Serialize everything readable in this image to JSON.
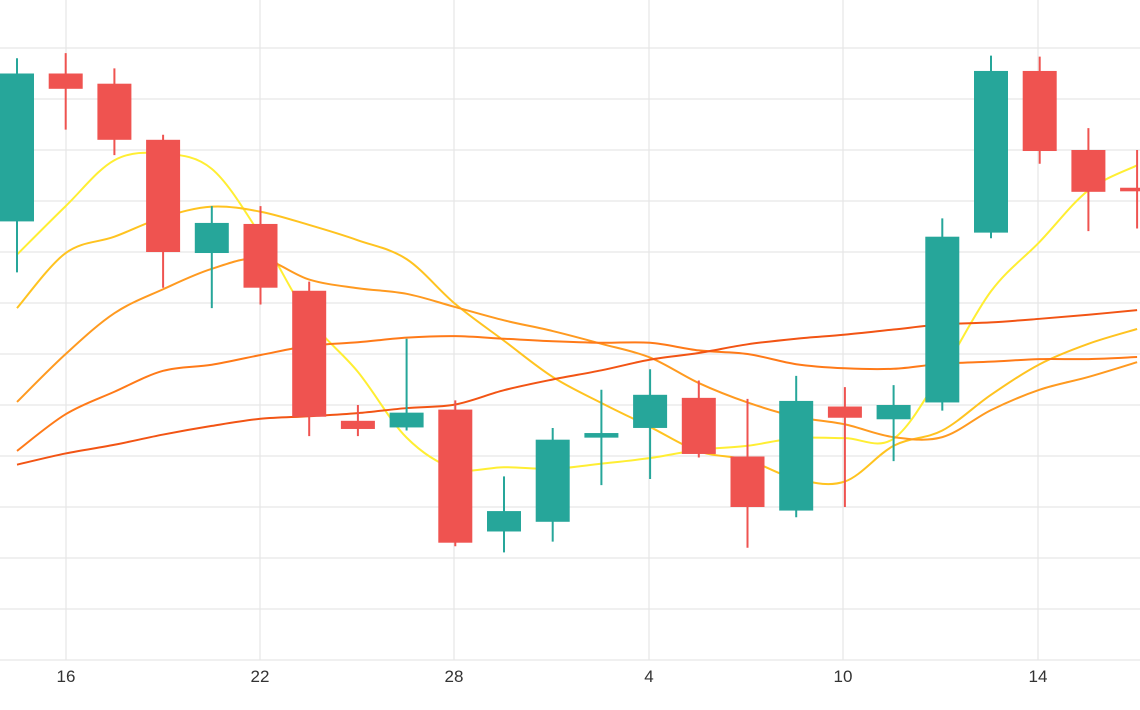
{
  "chart_data": {
    "type": "candlestick",
    "x_ticks": [
      "16",
      "22",
      "28",
      "4",
      "10",
      "14"
    ],
    "colors": {
      "up": "#26a69a",
      "down": "#ef5350",
      "grid": "#e6e6e6",
      "ma": [
        "#ffee33",
        "#ffc320",
        "#ff9a20",
        "#ff7a18",
        "#f25414"
      ]
    },
    "grid": true,
    "ylim": [
      0,
      13
    ],
    "candles": [
      {
        "open": 8.6,
        "close": 11.5,
        "high": 11.8,
        "low": 7.6
      },
      {
        "open": 11.5,
        "close": 11.2,
        "high": 11.9,
        "low": 10.4
      },
      {
        "open": 11.3,
        "close": 10.2,
        "high": 11.6,
        "low": 9.9
      },
      {
        "open": 10.2,
        "close": 8.0,
        "high": 10.3,
        "low": 7.3
      },
      {
        "open": 7.98,
        "close": 8.57,
        "high": 8.9,
        "low": 6.9
      },
      {
        "open": 8.55,
        "close": 7.3,
        "high": 8.9,
        "low": 6.97
      },
      {
        "open": 7.24,
        "close": 4.77,
        "high": 7.42,
        "low": 4.39
      },
      {
        "open": 4.69,
        "close": 4.53,
        "high": 5.0,
        "low": 4.39
      },
      {
        "open": 4.56,
        "close": 4.85,
        "high": 6.3,
        "low": 4.5
      },
      {
        "open": 4.91,
        "close": 2.3,
        "high": 5.09,
        "low": 2.23
      },
      {
        "open": 2.52,
        "close": 2.92,
        "high": 3.6,
        "low": 2.11
      },
      {
        "open": 2.71,
        "close": 4.32,
        "high": 4.55,
        "low": 2.32
      },
      {
        "open": 4.36,
        "close": 4.45,
        "high": 5.3,
        "low": 3.43
      },
      {
        "open": 4.55,
        "close": 5.2,
        "high": 5.7,
        "low": 3.55
      },
      {
        "open": 5.14,
        "close": 4.04,
        "high": 5.48,
        "low": 3.97
      },
      {
        "open": 3.99,
        "close": 3.0,
        "high": 5.12,
        "low": 2.2
      },
      {
        "open": 2.93,
        "close": 5.08,
        "high": 5.57,
        "low": 2.8
      },
      {
        "open": 4.97,
        "close": 4.75,
        "high": 5.35,
        "low": 3.0
      },
      {
        "open": 4.72,
        "close": 5.0,
        "high": 5.39,
        "low": 3.9
      },
      {
        "open": 5.05,
        "close": 8.3,
        "high": 8.66,
        "low": 4.89
      },
      {
        "open": 8.38,
        "close": 11.55,
        "high": 11.85,
        "low": 8.27
      },
      {
        "open": 11.55,
        "close": 9.98,
        "high": 11.83,
        "low": 9.73
      },
      {
        "open": 10.0,
        "close": 9.18,
        "high": 10.43,
        "low": 8.41
      },
      {
        "open": 9.26,
        "close": 9.19,
        "high": 10.0,
        "low": 8.46
      }
    ],
    "ma_series": [
      {
        "values": [
          7.95,
          8.9,
          9.8,
          9.93,
          9.63,
          8.33,
          6.7,
          5.65,
          4.36,
          3.75,
          3.78,
          3.75,
          3.85,
          3.96,
          4.12,
          4.2,
          4.35,
          4.35,
          4.34,
          5.65,
          7.23,
          8.2,
          9.21,
          9.7
        ]
      },
      {
        "values": [
          6.9,
          7.98,
          8.3,
          8.68,
          8.89,
          8.79,
          8.53,
          8.23,
          7.86,
          6.98,
          6.26,
          5.55,
          5.04,
          4.57,
          4.09,
          3.92,
          3.55,
          3.5,
          4.2,
          4.5,
          5.2,
          5.8,
          6.2,
          6.49
        ]
      },
      {
        "values": [
          5.06,
          6.0,
          6.8,
          7.27,
          7.67,
          7.87,
          7.46,
          7.29,
          7.18,
          6.92,
          6.66,
          6.45,
          6.2,
          5.93,
          5.43,
          5.05,
          4.77,
          4.62,
          4.37,
          4.37,
          4.9,
          5.3,
          5.55,
          5.84
        ]
      },
      {
        "values": [
          4.1,
          4.82,
          5.26,
          5.67,
          5.79,
          5.98,
          6.16,
          6.23,
          6.32,
          6.35,
          6.3,
          6.25,
          6.22,
          6.22,
          6.07,
          6.0,
          5.8,
          5.72,
          5.71,
          5.81,
          5.85,
          5.9,
          5.9,
          5.94
        ]
      },
      {
        "values": [
          3.83,
          4.05,
          4.22,
          4.42,
          4.59,
          4.73,
          4.78,
          4.84,
          4.94,
          5.01,
          5.29,
          5.5,
          5.68,
          5.89,
          6.02,
          6.19,
          6.3,
          6.38,
          6.48,
          6.58,
          6.62,
          6.69,
          6.77,
          6.86
        ]
      }
    ]
  }
}
